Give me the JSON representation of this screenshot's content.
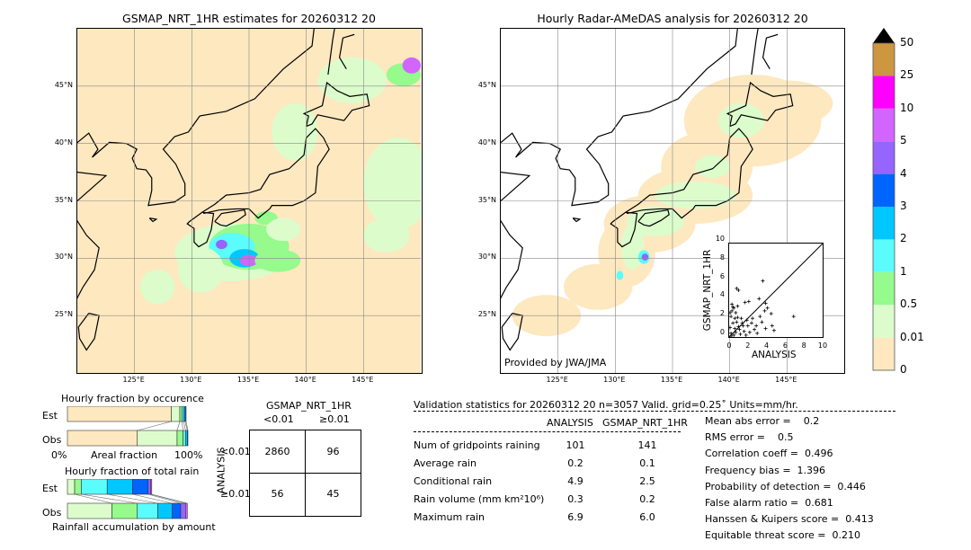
{
  "left_map": {
    "title": "GSMAP_NRT_1HR estimates for 20260312 20",
    "lon_ticks": [
      "125°E",
      "130°E",
      "135°E",
      "140°E",
      "145°E"
    ],
    "lat_ticks": [
      "45°N",
      "40°N",
      "35°N",
      "30°N",
      "25°N"
    ]
  },
  "right_map": {
    "title": "Hourly Radar-AMeDAS analysis for 20260312 20",
    "lon_ticks": [
      "125°E",
      "130°E",
      "135°E",
      "140°E",
      "145°E"
    ],
    "lat_ticks": [
      "45°N",
      "40°N",
      "35°N",
      "30°N",
      "25°N"
    ],
    "credit": "Provided by JWA/JMA"
  },
  "colorbar": {
    "labels": [
      "0",
      "0.01",
      "0.5",
      "1",
      "2",
      "3",
      "4",
      "5",
      "10",
      "25",
      "50"
    ],
    "colors": [
      "#fee8c0",
      "#dcfccc",
      "#96fa8c",
      "#5afcfc",
      "#00c8ff",
      "#0064ff",
      "#9664ff",
      "#d264ff",
      "#ff00ff",
      "#cd9641"
    ],
    "extend_color": "#000000"
  },
  "chart_data": [
    {
      "type": "scatter",
      "xlabel": "ANALYSIS",
      "ylabel": "GSMAP_NRT_1HR",
      "xlim": [
        0,
        10
      ],
      "ylim": [
        0,
        10
      ],
      "xticks": [
        "0",
        "2",
        "4",
        "6",
        "8",
        "10"
      ],
      "yticks": [
        "0",
        "2",
        "4",
        "6",
        "8",
        "10"
      ],
      "points": [
        [
          0.8,
          5.2
        ],
        [
          1.0,
          5.0
        ],
        [
          3.6,
          6.0
        ],
        [
          6.9,
          2.2
        ],
        [
          3.2,
          4.1
        ],
        [
          2.1,
          3.8
        ],
        [
          1.7,
          3.7
        ],
        [
          3.9,
          3.6
        ],
        [
          4.1,
          3.1
        ],
        [
          4.5,
          2.5
        ],
        [
          3.8,
          2.8
        ],
        [
          4.6,
          1.2
        ],
        [
          4.8,
          0.7
        ],
        [
          3.9,
          0.9
        ],
        [
          3.3,
          2.2
        ],
        [
          3.5,
          1.6
        ],
        [
          2.9,
          1.2
        ],
        [
          2.5,
          2.0
        ],
        [
          2.2,
          0.5
        ],
        [
          1.9,
          1.8
        ],
        [
          1.5,
          1.2
        ],
        [
          1.3,
          2.0
        ],
        [
          1.1,
          0.8
        ],
        [
          0.9,
          3.3
        ],
        [
          0.7,
          2.6
        ],
        [
          0.5,
          3.1
        ],
        [
          0.3,
          3.5
        ],
        [
          0.2,
          2.2
        ],
        [
          0.4,
          1.5
        ],
        [
          0.6,
          0.9
        ],
        [
          0.2,
          0.4
        ],
        [
          0.1,
          1.0
        ],
        [
          0.3,
          2.8
        ],
        [
          0.8,
          1.6
        ],
        [
          1.2,
          0.3
        ],
        [
          1.6,
          0.6
        ],
        [
          0.5,
          0.2
        ],
        [
          0.9,
          2.1
        ],
        [
          2.7,
          0.8
        ],
        [
          2.0,
          1.2
        ],
        [
          0.4,
          3.2
        ],
        [
          0.7,
          0.5
        ],
        [
          1.4,
          1.5
        ],
        [
          0.1,
          2.6
        ],
        [
          0.2,
          0.1
        ],
        [
          1.8,
          0.2
        ],
        [
          2.4,
          1.5
        ],
        [
          3.0,
          0.4
        ],
        [
          0.6,
          2.0
        ],
        [
          1.0,
          1.1
        ]
      ],
      "diagonal": true
    },
    {
      "type": "bar",
      "title": "Hourly fraction by occurence",
      "xlabel": "Areal fraction",
      "xtick_left": "0%",
      "xtick_right": "100%",
      "categories": [
        "Est",
        "Obs"
      ],
      "series": [
        {
          "values_est": [
            0.862,
            0.071,
            0.018,
            0.014,
            0.012,
            0.008
          ],
          "values_obs": [
            0.58,
            0.33,
            0.05,
            0.02,
            0.015,
            0.005
          ]
        }
      ]
    },
    {
      "type": "bar",
      "title": "Hourly fraction of total rain",
      "xlabel": "Rainfall accumulation by amount",
      "categories": [
        "Est",
        "Obs"
      ],
      "series": [
        {
          "values_est": [
            0.06,
            0.055,
            0.215,
            0.21,
            0.13,
            0.02,
            0.01
          ],
          "values_obs": [
            0.37,
            0.21,
            0.17,
            0.12,
            0.07,
            0.04,
            0.015
          ]
        }
      ]
    }
  ],
  "contingency": {
    "col_header": "GSMAP_NRT_1HR",
    "cols": [
      "<0.01",
      "≥0.01"
    ],
    "row_header": "ANALYSIS",
    "rows": [
      "<0.01",
      "≥0.01"
    ],
    "cells": [
      [
        "2860",
        "96"
      ],
      [
        "56",
        "45"
      ]
    ]
  },
  "stats": {
    "header": "Validation statistics for 20260312 20  n=3057 Valid. grid=0.25˚ Units=mm/hr.",
    "col_analysis": "ANALYSIS",
    "col_gsmap": "GSMAP_NRT_1HR",
    "rows": [
      {
        "label": "Num of gridpoints raining",
        "a": "101",
        "g": "141"
      },
      {
        "label": "Average rain",
        "a": "0.2",
        "g": "0.1"
      },
      {
        "label": "Conditional rain",
        "a": "4.9",
        "g": "2.5"
      },
      {
        "label": "Rain volume (mm km²10⁶)",
        "a": "0.3",
        "g": "0.2"
      },
      {
        "label": "Maximum rain",
        "a": "6.9",
        "g": "6.0"
      }
    ],
    "scores": [
      "Mean abs error =    0.2",
      "RMS error =    0.5",
      "Correlation coeff =  0.496",
      "Frequency bias =  1.396",
      "Probability of detection =  0.446",
      "False alarm ratio =  0.681",
      "Hanssen & Kuipers score =  0.413",
      "Equitable threat score =  0.210"
    ]
  }
}
